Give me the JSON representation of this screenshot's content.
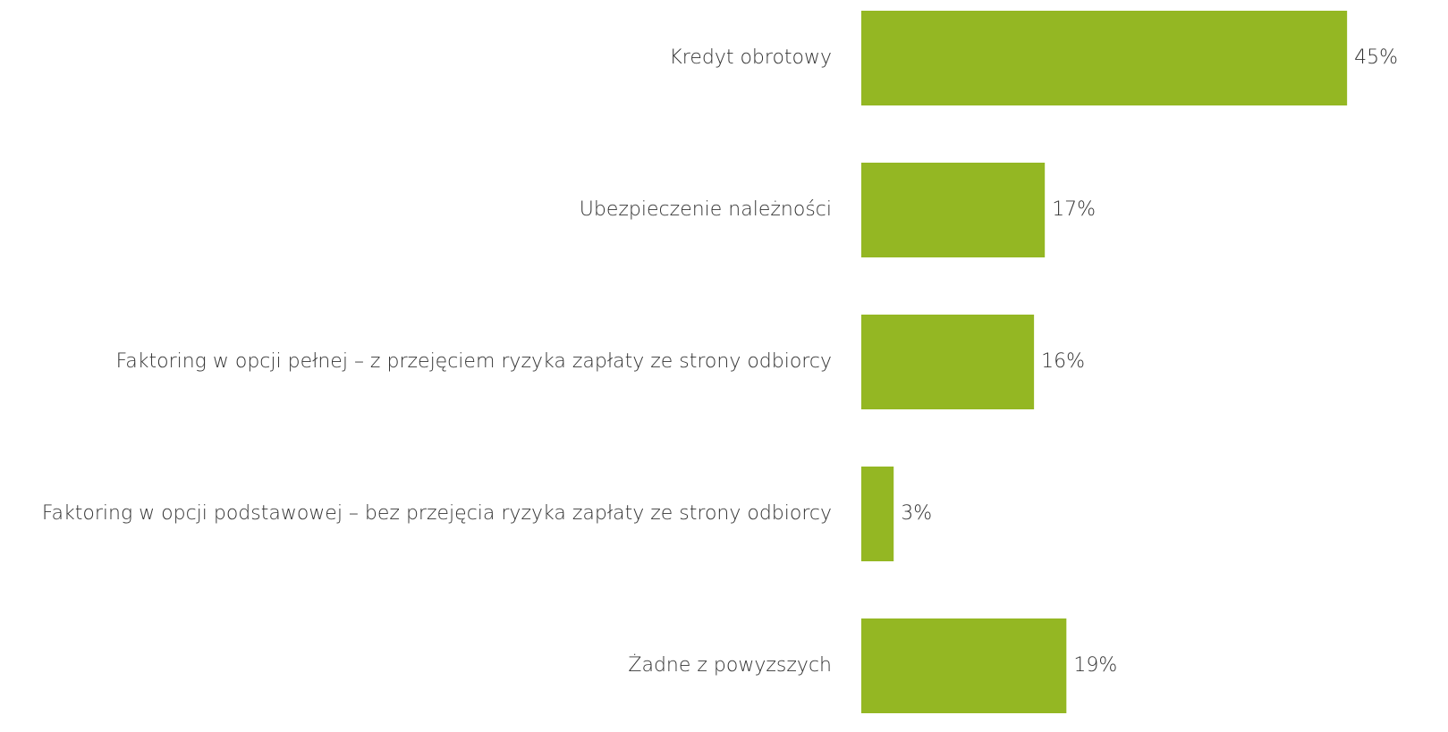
{
  "chart_data": {
    "type": "bar",
    "orientation": "horizontal",
    "categories": [
      "Kredyt obrotowy",
      "Ubezpieczenie należności",
      "Faktoring w opcji pełnej – z przejęciem ryzyka zapłaty ze strony odbiorcy",
      "Faktoring w opcji podstawowej – bez przejęcia ryzyka zapłaty ze strony odbiorcy",
      "Żadne z powyzszych"
    ],
    "values": [
      45,
      17,
      16,
      3,
      19
    ],
    "value_labels": [
      "45%",
      "17%",
      "16%",
      "3%",
      "19%"
    ],
    "color": "#94b723"
  }
}
